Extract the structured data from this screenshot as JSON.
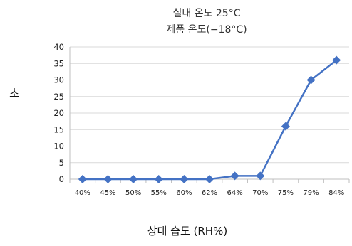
{
  "chart_data": {
    "type": "line",
    "title": "실내 온도 25°C",
    "subtitle": "제품 온도(−18°C)",
    "xlabel": "상대 습도 (RH%)",
    "ylabel": "초",
    "categories": [
      "40%",
      "45%",
      "50%",
      "55%",
      "60%",
      "62%",
      "64%",
      "70%",
      "75%",
      "79%",
      "84%"
    ],
    "series": [
      {
        "values": [
          0,
          0,
          0,
          0,
          0,
          0,
          1,
          1,
          16,
          30,
          36
        ]
      }
    ],
    "ylim": [
      0,
      40
    ],
    "yticks": [
      0,
      5,
      10,
      15,
      20,
      25,
      30,
      35,
      40
    ],
    "grid": true,
    "legend": "none",
    "line_color": "#4472C4",
    "grid_color": "#d9d9d9",
    "axis_color": "#bfbfbf"
  }
}
